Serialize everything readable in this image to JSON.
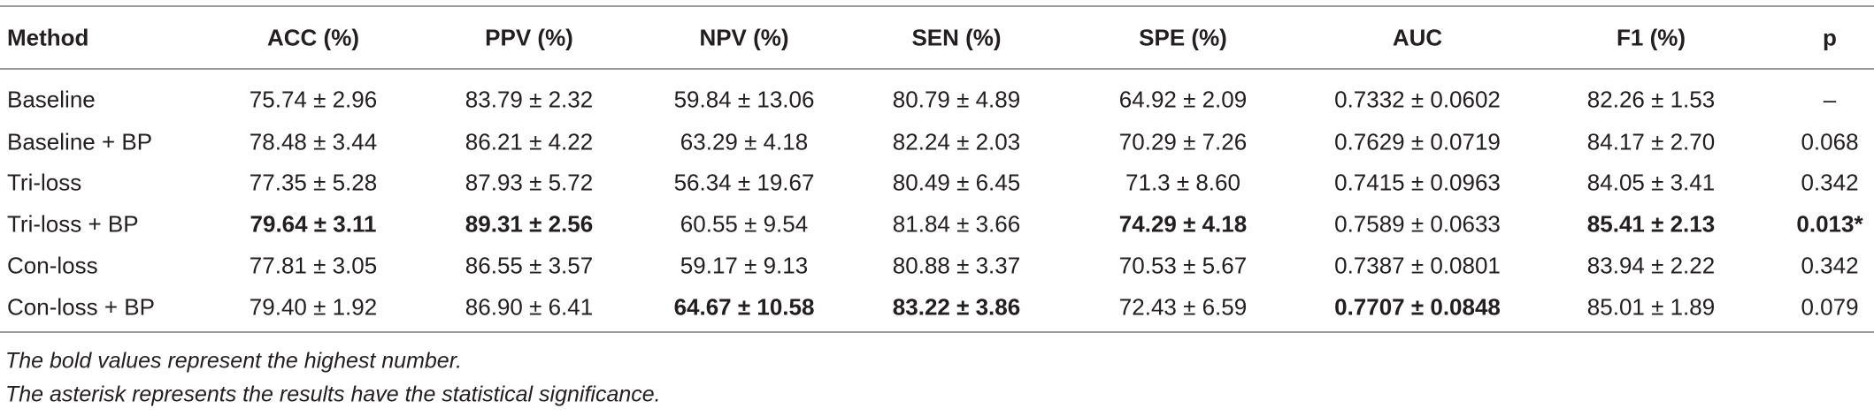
{
  "table": {
    "header": [
      "Method",
      "ACC (%)",
      "PPV (%)",
      "NPV (%)",
      "SEN (%)",
      "SPE (%)",
      "AUC",
      "F1 (%)",
      "p"
    ],
    "rows": [
      [
        "Baseline",
        "75.74 ± 2.96",
        "83.79 ± 2.32",
        "59.84 ± 13.06",
        "80.79 ± 4.89",
        "64.92 ± 2.09",
        "0.7332 ± 0.0602",
        "82.26 ± 1.53",
        "–"
      ],
      [
        "Baseline + BP",
        "78.48 ± 3.44",
        "86.21 ± 4.22",
        "63.29 ± 4.18",
        "82.24 ± 2.03",
        "70.29 ± 7.26",
        "0.7629 ± 0.0719",
        "84.17 ± 2.70",
        "0.068"
      ],
      [
        "Tri-loss",
        "77.35 ± 5.28",
        "87.93 ± 5.72",
        "56.34 ± 19.67",
        "80.49 ± 6.45",
        "71.3 ± 8.60",
        "0.7415 ± 0.0963",
        "84.05 ± 3.41",
        "0.342"
      ],
      [
        "Tri-loss + BP",
        "79.64 ± 3.11",
        "89.31 ± 2.56",
        "60.55 ± 9.54",
        "81.84 ± 3.66",
        "74.29 ± 4.18",
        "0.7589 ± 0.0633",
        "85.41 ± 2.13",
        "0.013*"
      ],
      [
        "Con-loss",
        "77.81 ± 3.05",
        "86.55 ± 3.57",
        "59.17 ± 9.13",
        "80.88 ± 3.37",
        "70.53 ± 5.67",
        "0.7387 ± 0.0801",
        "83.94 ± 2.22",
        "0.342"
      ],
      [
        "Con-loss + BP",
        "79.40 ± 1.92",
        "86.90 ± 6.41",
        "64.67 ± 10.58",
        "83.22 ± 3.86",
        "72.43 ± 6.59",
        "0.7707 ± 0.0848",
        "85.01 ± 1.89",
        "0.079"
      ]
    ]
  },
  "notes": [
    "The bold values represent the highest number.",
    "The asterisk represents the results have the statistical significance."
  ]
}
